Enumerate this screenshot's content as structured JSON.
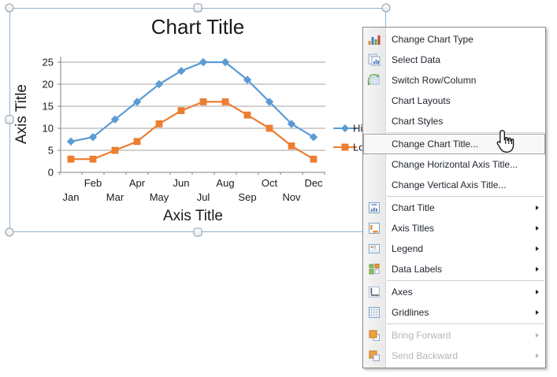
{
  "chart_data": {
    "type": "line",
    "title": "Chart Title",
    "xlabel": "Axis Title",
    "ylabel": "Axis Title",
    "categories": [
      "Jan",
      "Feb",
      "Mar",
      "Apr",
      "May",
      "Jun",
      "Jul",
      "Aug",
      "Sep",
      "Oct",
      "Nov",
      "Dec"
    ],
    "series": [
      {
        "name": "High",
        "legend_label": "Hi",
        "color": "#5b9bd5",
        "marker": "diamond",
        "values": [
          7,
          8,
          12,
          16,
          20,
          23,
          25,
          25,
          21,
          16,
          11,
          8
        ]
      },
      {
        "name": "Low",
        "legend_label": "Lo",
        "color": "#ed7d31",
        "marker": "square",
        "values": [
          3,
          3,
          5,
          7,
          11,
          14,
          16,
          16,
          13,
          10,
          6,
          3
        ]
      }
    ],
    "ylim": [
      0,
      25
    ],
    "yticks": [
      0,
      5,
      10,
      15,
      20,
      25
    ],
    "grid": "horizontal-only",
    "gridline_color": "#a3a3a3",
    "axis_color": "#808080",
    "text_color": "#1a1a1a",
    "legend_position": "right",
    "x_labels_staggered": true
  },
  "selection": {
    "state": "chart-selected",
    "border_color": "#8fb3d7",
    "handles": [
      "top-left",
      "top-center",
      "top-right",
      "middle-left",
      "middle-right",
      "bottom-left",
      "bottom-center",
      "bottom-right"
    ]
  },
  "context_menu": {
    "highlight_border_color": "#a3a3a3",
    "disabled_text_color": "#b5b5b5",
    "items": [
      {
        "label": "Change Chart Type",
        "icon": "chart-type-icon"
      },
      {
        "label": "Select Data",
        "icon": "select-data-icon"
      },
      {
        "label": "Switch Row/Column",
        "icon": "switch-row-column-icon"
      },
      {
        "label": "Chart Layouts"
      },
      {
        "label": "Chart Styles",
        "separator_after": true
      },
      {
        "label": "Change Chart Title...",
        "highlighted": true
      },
      {
        "label": "Change Horizontal Axis Title..."
      },
      {
        "label": "Change Vertical Axis Title...",
        "separator_after": true
      },
      {
        "label": "Chart Title",
        "icon": "chart-title-icon",
        "submenu": true
      },
      {
        "label": "Axis Titles",
        "icon": "axis-titles-icon",
        "submenu": true
      },
      {
        "label": "Legend",
        "icon": "legend-icon",
        "submenu": true
      },
      {
        "label": "Data Labels",
        "icon": "data-labels-icon",
        "submenu": true,
        "separator_after": true
      },
      {
        "label": "Axes",
        "icon": "axes-icon",
        "submenu": true
      },
      {
        "label": "Gridlines",
        "icon": "gridlines-icon",
        "submenu": true,
        "separator_after": true
      },
      {
        "label": "Bring Forward",
        "icon": "bring-forward-icon",
        "submenu": true,
        "disabled": true
      },
      {
        "label": "Send Backward",
        "icon": "send-backward-icon",
        "submenu": true,
        "disabled": true
      }
    ]
  },
  "cursor": {
    "type": "hand-pointer"
  }
}
